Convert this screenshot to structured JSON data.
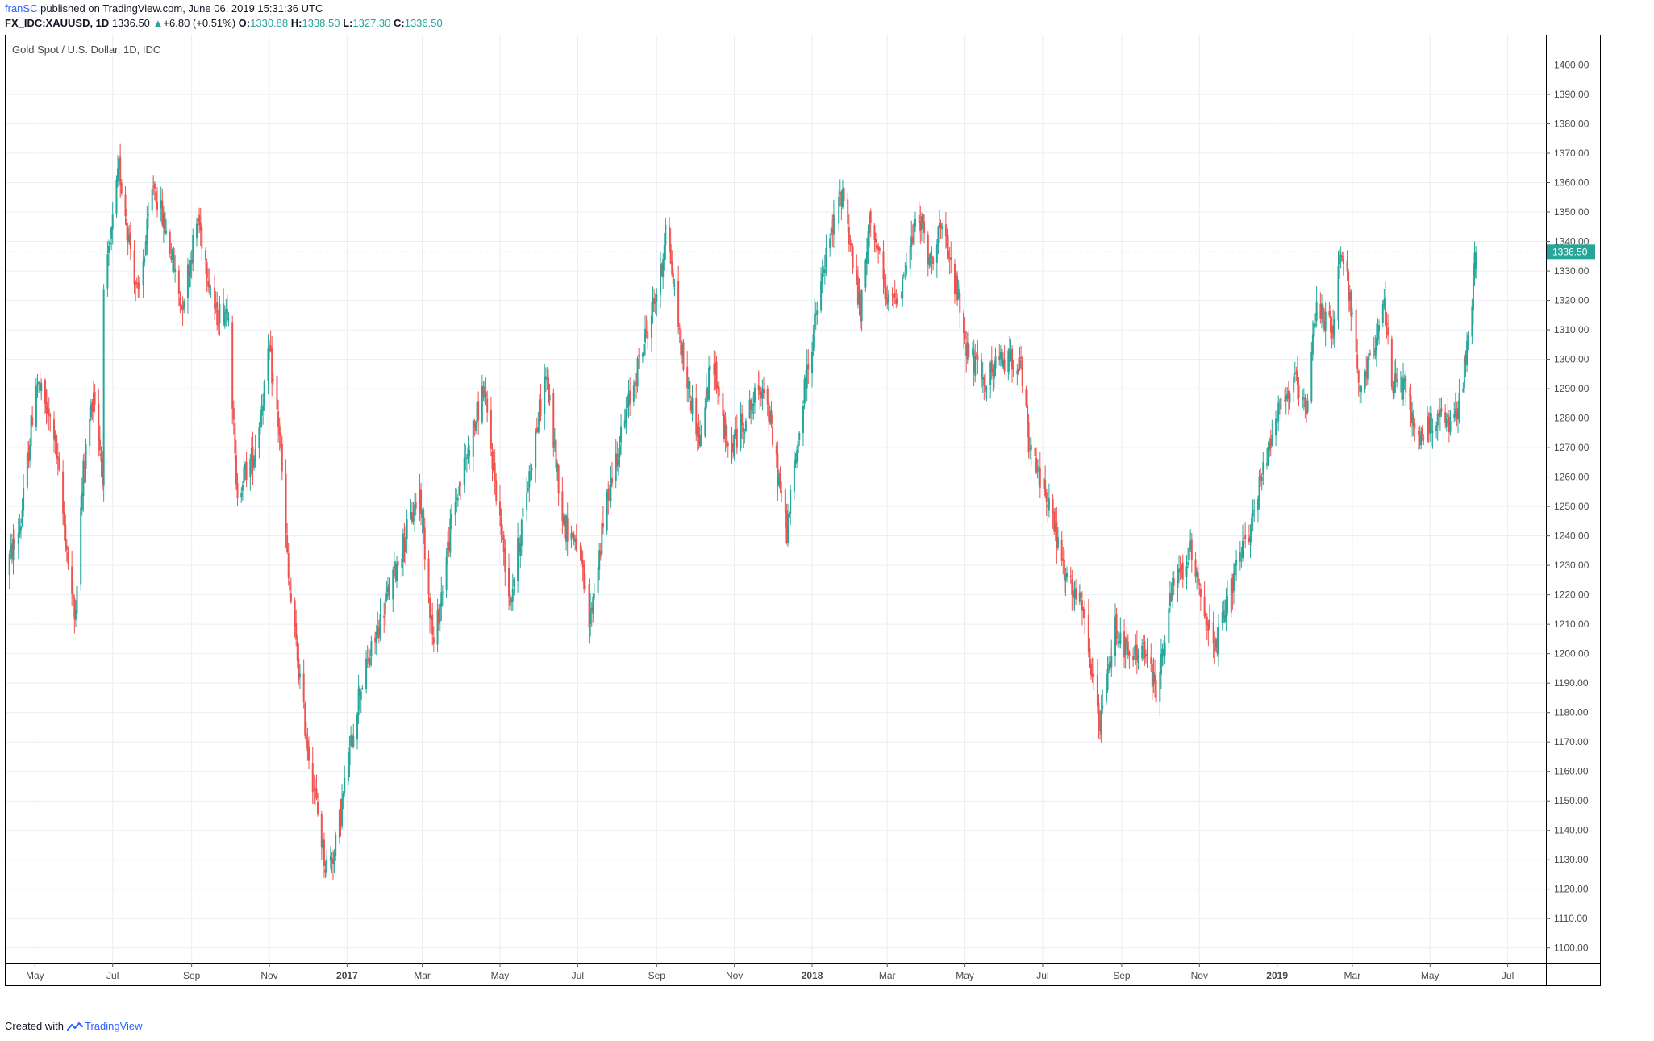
{
  "header": {
    "author": "franSC",
    "published_text": "published on TradingView.com, June 06, 2019 15:31:36 UTC",
    "symbol": "FX_IDC:XAUUSD, 1D",
    "last": "1336.50",
    "change_arrow": "▲",
    "change": "+6.80 (+0.51%)",
    "open_label": "O:",
    "open": "1330.88",
    "high_label": "H:",
    "high": "1338.50",
    "low_label": "L:",
    "low": "1327.30",
    "close_label": "C:",
    "close": "1336.50"
  },
  "footer": {
    "created_with": "Created with",
    "brand": "TradingView",
    "logo_icon": "tradingview-logo-icon"
  },
  "colors": {
    "up": "#26a69a",
    "down": "#ef5350",
    "grid": "#e9eef3",
    "axis_text": "#4a4a4a",
    "last_price_line": "#26a69a",
    "author": "#2962ff"
  },
  "chart_data": {
    "type": "candlestick",
    "title": "Gold Spot / U.S. Dollar, 1D, IDC",
    "x_tick_labels": [
      "May",
      "Jul",
      "Sep",
      "Nov",
      "2017",
      "Mar",
      "May",
      "Jul",
      "Sep",
      "Nov",
      "2018",
      "Mar",
      "May",
      "Jul",
      "Sep",
      "Nov",
      "2019",
      "Mar",
      "May",
      "Jul"
    ],
    "x_tick_bold": [
      "2017",
      "2018",
      "2019"
    ],
    "x_range": [
      "2016-04-08",
      "2019-07-31"
    ],
    "ylim": [
      1095,
      1410
    ],
    "y_ticks": [
      1100,
      1110,
      1120,
      1130,
      1140,
      1150,
      1160,
      1170,
      1180,
      1190,
      1200,
      1210,
      1220,
      1230,
      1240,
      1250,
      1260,
      1270,
      1280,
      1290,
      1300,
      1310,
      1320,
      1330,
      1340,
      1350,
      1360,
      1370,
      1380,
      1390,
      1400
    ],
    "last_price": 1336.5,
    "last_price_label": "1336.50",
    "grid": true,
    "price_path": [
      [
        "2016-04-08",
        1228
      ],
      [
        "2016-04-20",
        1245
      ],
      [
        "2016-05-02",
        1293
      ],
      [
        "2016-05-16",
        1275
      ],
      [
        "2016-06-01",
        1212
      ],
      [
        "2016-06-08",
        1262
      ],
      [
        "2016-06-16",
        1290
      ],
      [
        "2016-06-23",
        1262
      ],
      [
        "2016-06-24",
        1320
      ],
      [
        "2016-07-06",
        1365
      ],
      [
        "2016-07-21",
        1320
      ],
      [
        "2016-08-02",
        1360
      ],
      [
        "2016-08-15",
        1338
      ],
      [
        "2016-08-24",
        1318
      ],
      [
        "2016-09-06",
        1348
      ],
      [
        "2016-09-20",
        1315
      ],
      [
        "2016-09-30",
        1318
      ],
      [
        "2016-10-06",
        1255
      ],
      [
        "2016-10-20",
        1268
      ],
      [
        "2016-11-01",
        1302
      ],
      [
        "2016-11-09",
        1275
      ],
      [
        "2016-11-16",
        1225
      ],
      [
        "2016-11-30",
        1172
      ],
      [
        "2016-12-15",
        1128
      ],
      [
        "2016-12-22",
        1132
      ],
      [
        "2017-01-10",
        1186
      ],
      [
        "2017-01-25",
        1208
      ],
      [
        "2017-02-10",
        1232
      ],
      [
        "2017-02-27",
        1255
      ],
      [
        "2017-03-10",
        1202
      ],
      [
        "2017-03-25",
        1248
      ],
      [
        "2017-04-18",
        1290
      ],
      [
        "2017-05-09",
        1218
      ],
      [
        "2017-05-25",
        1264
      ],
      [
        "2017-06-06",
        1295
      ],
      [
        "2017-06-20",
        1244
      ],
      [
        "2017-07-01",
        1238
      ],
      [
        "2017-07-10",
        1210
      ],
      [
        "2017-07-25",
        1255
      ],
      [
        "2017-08-10",
        1285
      ],
      [
        "2017-09-05",
        1330
      ],
      [
        "2017-09-08",
        1348
      ],
      [
        "2017-09-22",
        1298
      ],
      [
        "2017-10-05",
        1272
      ],
      [
        "2017-10-15",
        1302
      ],
      [
        "2017-10-27",
        1268
      ],
      [
        "2017-11-15",
        1285
      ],
      [
        "2017-11-24",
        1292
      ],
      [
        "2017-12-12",
        1242
      ],
      [
        "2017-12-28",
        1296
      ],
      [
        "2018-01-12",
        1335
      ],
      [
        "2018-01-25",
        1358
      ],
      [
        "2018-02-08",
        1315
      ],
      [
        "2018-02-16",
        1350
      ],
      [
        "2018-03-01",
        1318
      ],
      [
        "2018-03-12",
        1325
      ],
      [
        "2018-03-26",
        1350
      ],
      [
        "2018-04-03",
        1332
      ],
      [
        "2018-04-11",
        1345
      ],
      [
        "2018-04-24",
        1325
      ],
      [
        "2018-05-02",
        1305
      ],
      [
        "2018-05-15",
        1292
      ],
      [
        "2018-05-31",
        1300
      ],
      [
        "2018-06-13",
        1300
      ],
      [
        "2018-06-21",
        1268
      ],
      [
        "2018-07-04",
        1255
      ],
      [
        "2018-07-19",
        1225
      ],
      [
        "2018-08-01",
        1215
      ],
      [
        "2018-08-15",
        1175
      ],
      [
        "2018-08-27",
        1210
      ],
      [
        "2018-09-07",
        1198
      ],
      [
        "2018-09-18",
        1202
      ],
      [
        "2018-09-28",
        1187
      ],
      [
        "2018-10-11",
        1222
      ],
      [
        "2018-10-26",
        1235
      ],
      [
        "2018-11-13",
        1200
      ],
      [
        "2018-11-26",
        1222
      ],
      [
        "2018-12-12",
        1245
      ],
      [
        "2018-12-31",
        1282
      ],
      [
        "2019-01-15",
        1292
      ],
      [
        "2019-01-24",
        1280
      ],
      [
        "2019-02-01",
        1320
      ],
      [
        "2019-02-14",
        1308
      ],
      [
        "2019-02-20",
        1340
      ],
      [
        "2019-02-28",
        1318
      ],
      [
        "2019-03-07",
        1285
      ],
      [
        "2019-03-25",
        1320
      ],
      [
        "2019-04-01",
        1292
      ],
      [
        "2019-04-11",
        1290
      ],
      [
        "2019-04-23",
        1272
      ],
      [
        "2019-05-03",
        1280
      ],
      [
        "2019-05-20",
        1278
      ],
      [
        "2019-05-24",
        1285
      ],
      [
        "2019-05-31",
        1305
      ],
      [
        "2019-06-03",
        1322
      ],
      [
        "2019-06-06",
        1336.5
      ]
    ]
  }
}
